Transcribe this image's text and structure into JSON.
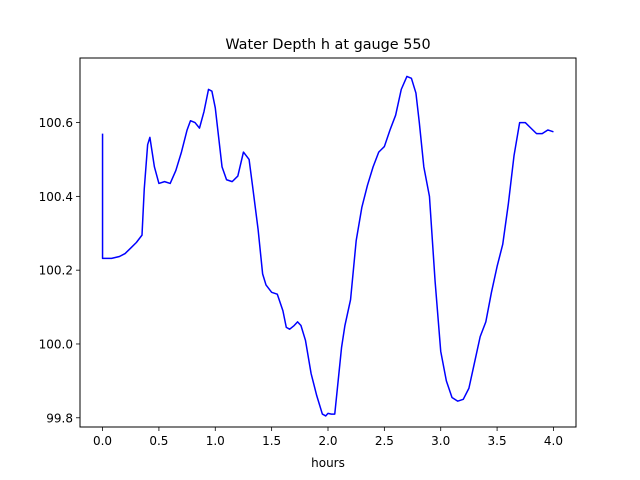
{
  "chart_data": {
    "type": "line",
    "title": "Water Depth h at gauge 550",
    "xlabel": "hours",
    "ylabel": "",
    "xlim": [
      -0.2,
      4.2
    ],
    "ylim": [
      99.775,
      100.775
    ],
    "x_ticks": [
      0.0,
      0.5,
      1.0,
      1.5,
      2.0,
      2.5,
      3.0,
      3.5,
      4.0
    ],
    "x_tick_labels": [
      "0.0",
      "0.5",
      "1.0",
      "1.5",
      "2.0",
      "2.5",
      "3.0",
      "3.5",
      "4.0"
    ],
    "y_ticks": [
      99.8,
      100.0,
      100.2,
      100.4,
      100.6
    ],
    "y_tick_labels": [
      "99.8",
      "100.0",
      "100.2",
      "100.4",
      "100.6"
    ],
    "grid": false,
    "legend": "none",
    "series": [
      {
        "color": "#0000ff",
        "x": [
          0.0,
          0.0,
          0.08,
          0.15,
          0.2,
          0.25,
          0.3,
          0.35,
          0.37,
          0.4,
          0.42,
          0.44,
          0.46,
          0.5,
          0.55,
          0.6,
          0.65,
          0.7,
          0.75,
          0.78,
          0.82,
          0.86,
          0.9,
          0.94,
          0.97,
          1.0,
          1.03,
          1.06,
          1.1,
          1.15,
          1.2,
          1.25,
          1.3,
          1.33,
          1.38,
          1.42,
          1.45,
          1.5,
          1.55,
          1.6,
          1.63,
          1.66,
          1.7,
          1.73,
          1.76,
          1.8,
          1.85,
          1.9,
          1.95,
          1.98,
          2.0,
          2.03,
          2.06,
          2.09,
          2.12,
          2.15,
          2.2,
          2.25,
          2.3,
          2.35,
          2.4,
          2.45,
          2.5,
          2.55,
          2.6,
          2.65,
          2.7,
          2.74,
          2.78,
          2.81,
          2.85,
          2.9,
          2.95,
          3.0,
          3.05,
          3.1,
          3.15,
          3.2,
          3.25,
          3.3,
          3.35,
          3.4,
          3.45,
          3.5,
          3.55,
          3.6,
          3.65,
          3.7,
          3.75,
          3.8,
          3.85,
          3.9,
          3.95,
          4.0
        ],
        "y": [
          100.57,
          100.232,
          100.232,
          100.237,
          100.245,
          100.26,
          100.275,
          100.295,
          100.42,
          100.54,
          100.56,
          100.52,
          100.48,
          100.435,
          100.44,
          100.435,
          100.47,
          100.52,
          100.58,
          100.605,
          100.6,
          100.585,
          100.63,
          100.69,
          100.685,
          100.64,
          100.56,
          100.48,
          100.445,
          100.44,
          100.455,
          100.52,
          100.5,
          100.43,
          100.31,
          100.19,
          100.16,
          100.14,
          100.135,
          100.09,
          100.045,
          100.04,
          100.05,
          100.06,
          100.05,
          100.01,
          99.92,
          99.86,
          99.81,
          99.805,
          99.812,
          99.81,
          99.81,
          99.9,
          99.99,
          100.05,
          100.12,
          100.28,
          100.37,
          100.43,
          100.48,
          100.52,
          100.535,
          100.58,
          100.62,
          100.69,
          100.725,
          100.72,
          100.68,
          100.6,
          100.48,
          100.4,
          100.17,
          99.98,
          99.9,
          99.855,
          99.845,
          99.85,
          99.88,
          99.95,
          100.02,
          100.06,
          100.14,
          100.21,
          100.27,
          100.38,
          100.51,
          100.6,
          100.6,
          100.585,
          100.57,
          100.57,
          100.58,
          100.575
        ]
      }
    ]
  }
}
